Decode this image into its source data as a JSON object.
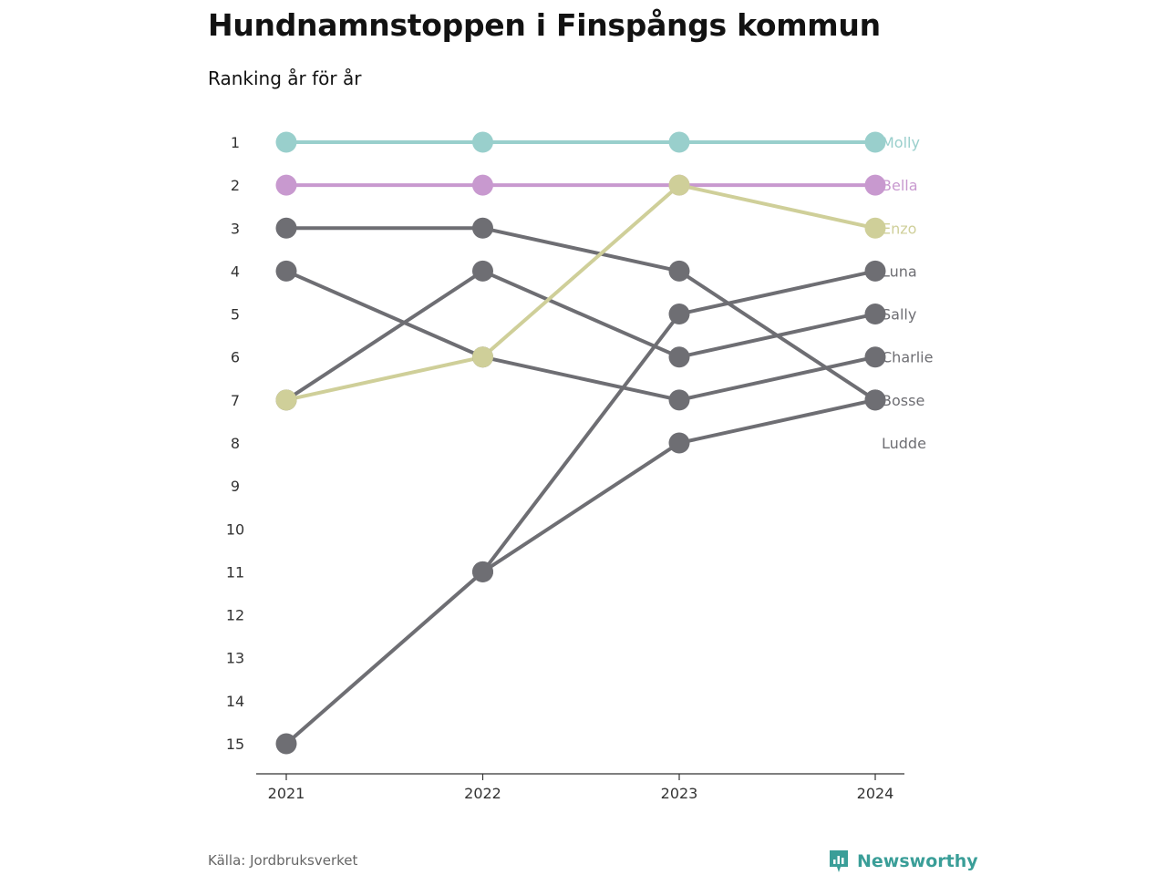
{
  "title": "Hundnamnstoppen i Finspångs kommun",
  "subtitle": "Ranking år för år",
  "source": "Källa: Jordbruksverket",
  "brand": "Newsworthy",
  "colors": {
    "molly": "#99cfcc",
    "bella": "#c899cf",
    "enzo": "#cfcf99",
    "other": "#6e6e73",
    "brand": "#3a9e98",
    "axis": "#333333"
  },
  "chart_data": {
    "type": "line",
    "x": [
      "2021",
      "2022",
      "2023",
      "2024"
    ],
    "y_axis": {
      "reversed": true,
      "range": [
        1,
        15
      ],
      "ticks": [
        "1",
        "2",
        "3",
        "4",
        "5",
        "6",
        "7",
        "8",
        "9",
        "10",
        "11",
        "12",
        "13",
        "14",
        "15"
      ]
    },
    "grid": false,
    "legend": "end-labels",
    "series": [
      {
        "name": "Molly",
        "values": [
          1,
          1,
          1,
          1
        ],
        "color": "#99cfcc"
      },
      {
        "name": "Bella",
        "values": [
          2,
          2,
          2,
          2
        ],
        "color": "#c899cf"
      },
      {
        "name": "Enzo",
        "values": [
          7,
          6,
          2,
          3
        ],
        "color": "#cfcf99"
      },
      {
        "name": "Luna",
        "values": [
          15,
          11,
          5,
          4
        ],
        "color": "#6e6e73"
      },
      {
        "name": "Sally",
        "values": [
          7,
          4,
          6,
          5
        ],
        "color": "#6e6e73"
      },
      {
        "name": "Charlie",
        "values": [
          4,
          6,
          7,
          6
        ],
        "color": "#6e6e73"
      },
      {
        "name": "Bosse",
        "values": [
          3,
          3,
          4,
          7
        ],
        "color": "#6e6e73"
      },
      {
        "name": "Ludde",
        "values": [
          null,
          11,
          8,
          7
        ],
        "color": "#6e6e73"
      }
    ]
  }
}
